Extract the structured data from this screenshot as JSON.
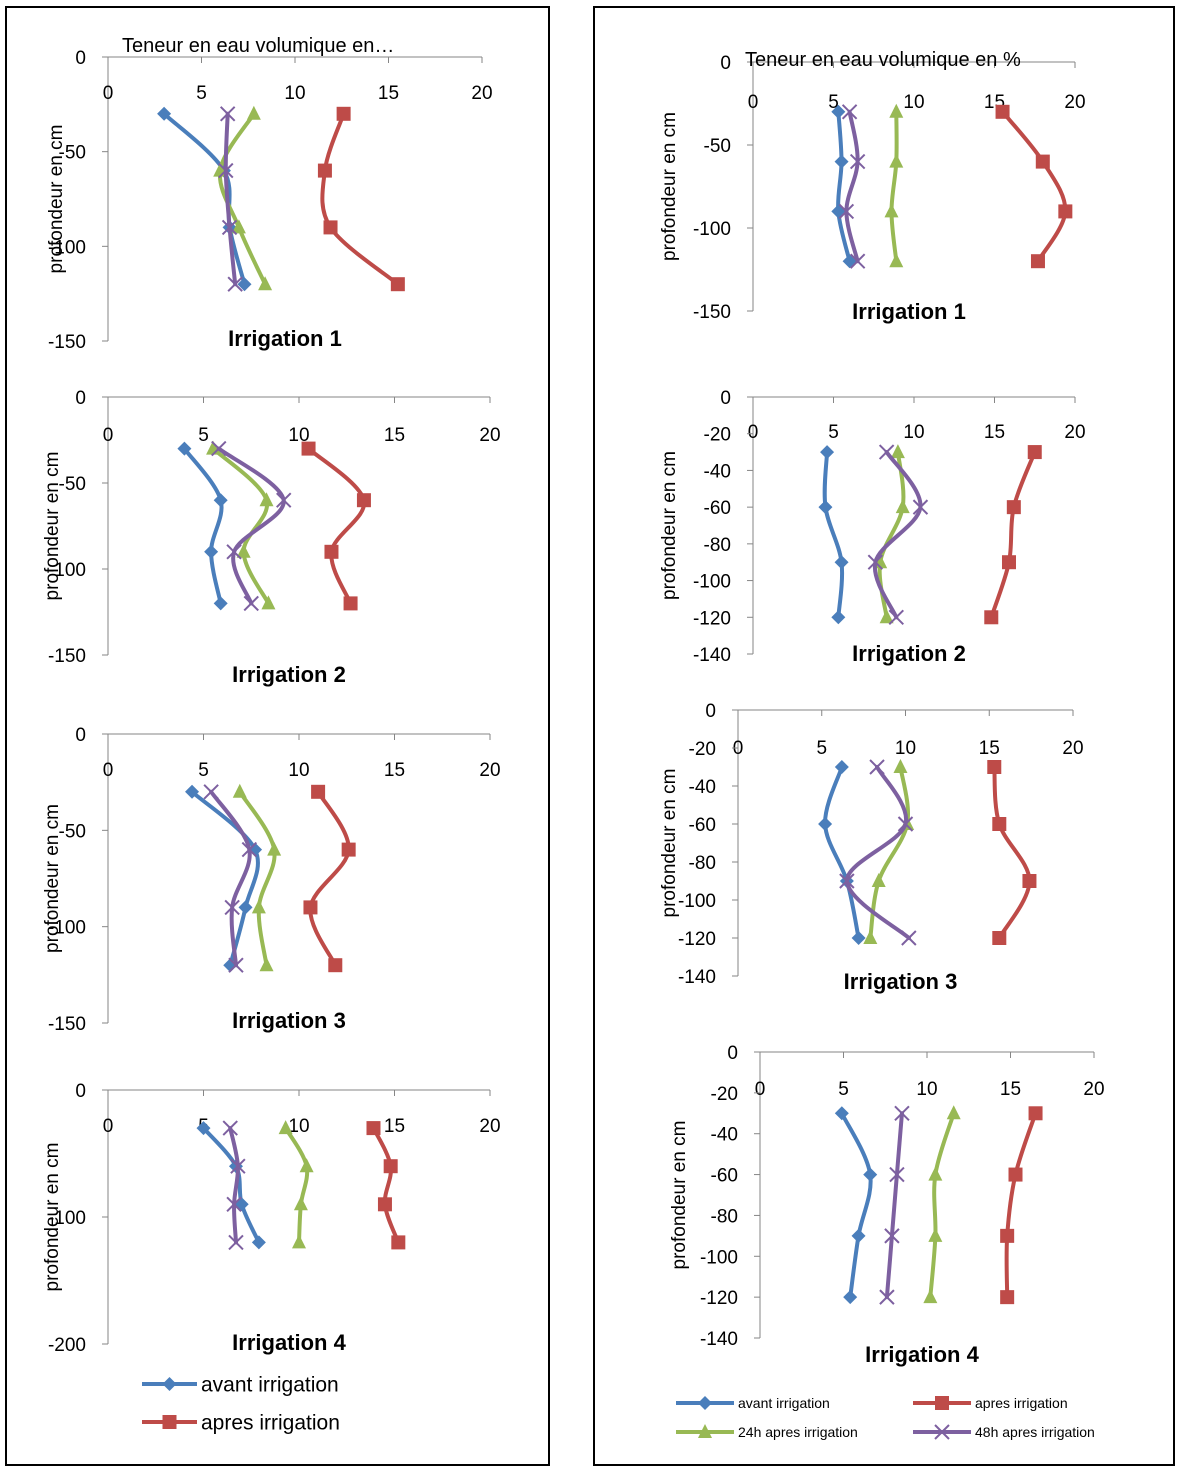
{
  "colors": {
    "avant": "#4A7EBB",
    "apres": "#BE4B48",
    "h24": "#98B954",
    "h48": "#7D60A0"
  },
  "legend_left": [
    {
      "label": "avant irrigation",
      "series": "avant",
      "marker": "diamond"
    },
    {
      "label": "apres irrigation",
      "series": "apres",
      "marker": "square"
    }
  ],
  "legend_right": [
    {
      "label": "avant irrigation",
      "series": "avant",
      "marker": "diamond"
    },
    {
      "label": "apres irrigation",
      "series": "apres",
      "marker": "square"
    },
    {
      "label": "24h apres irrigation",
      "series": "h24",
      "marker": "triangle"
    },
    {
      "label": "48h apres irrigation",
      "series": "h48",
      "marker": "x"
    }
  ],
  "chart_data": [
    {
      "id": "L1",
      "type": "line",
      "title": "Irrigation 1",
      "top_label": "Teneur en eau volumique en…",
      "ylabel": "profondeur en cm",
      "xlim": [
        0,
        20
      ],
      "xticks": [
        0,
        5,
        10,
        15,
        20
      ],
      "ylim": [
        -150,
        0
      ],
      "yticks": [
        0,
        -50,
        -100,
        -150
      ],
      "y": [
        -30,
        -60,
        -90,
        -120
      ],
      "series": [
        {
          "key": "avant",
          "x": [
            3.0,
            6.2,
            6.5,
            7.3
          ]
        },
        {
          "key": "apres",
          "x": [
            12.6,
            11.6,
            11.9,
            15.5
          ]
        },
        {
          "key": "h24",
          "x": [
            7.8,
            6.0,
            7.0,
            8.4
          ]
        },
        {
          "key": "h48",
          "x": [
            6.4,
            6.3,
            6.5,
            6.8
          ]
        }
      ]
    },
    {
      "id": "L2",
      "type": "line",
      "title": "Irrigation 2",
      "ylabel": "profondeur en cm",
      "xlim": [
        0,
        20
      ],
      "xticks": [
        0,
        5,
        10,
        15,
        20
      ],
      "ylim": [
        -150,
        0
      ],
      "yticks": [
        0,
        -50,
        -100,
        -150
      ],
      "y": [
        -30,
        -60,
        -90,
        -120
      ],
      "series": [
        {
          "key": "avant",
          "x": [
            4.0,
            5.9,
            5.4,
            5.9
          ]
        },
        {
          "key": "apres",
          "x": [
            10.5,
            13.4,
            11.7,
            12.7
          ]
        },
        {
          "key": "h24",
          "x": [
            5.5,
            8.3,
            7.1,
            8.4
          ]
        },
        {
          "key": "h48",
          "x": [
            5.8,
            9.2,
            6.6,
            7.5
          ]
        }
      ]
    },
    {
      "id": "L3",
      "type": "line",
      "title": "Irrigation 3",
      "ylabel": "profondeur en cm",
      "xlim": [
        0,
        20
      ],
      "xticks": [
        0,
        5,
        10,
        15,
        20
      ],
      "ylim": [
        -150,
        0
      ],
      "yticks": [
        0,
        -50,
        -100,
        -150
      ],
      "y": [
        -30,
        -60,
        -90,
        -120
      ],
      "series": [
        {
          "key": "avant",
          "x": [
            4.4,
            7.7,
            7.2,
            6.4
          ]
        },
        {
          "key": "apres",
          "x": [
            11.0,
            12.6,
            10.6,
            11.9
          ]
        },
        {
          "key": "h24",
          "x": [
            6.9,
            8.7,
            7.9,
            8.3
          ]
        },
        {
          "key": "h48",
          "x": [
            5.4,
            7.4,
            6.5,
            6.7
          ]
        }
      ]
    },
    {
      "id": "L4",
      "type": "line",
      "title": "Irrigation 4",
      "ylabel": "profondeur en cm",
      "xlim": [
        0,
        20
      ],
      "xticks": [
        0,
        5,
        10,
        15,
        20
      ],
      "ylim": [
        -200,
        0
      ],
      "yticks": [
        0,
        -100,
        -200
      ],
      "y": [
        -30,
        -60,
        -90,
        -120
      ],
      "series": [
        {
          "key": "avant",
          "x": [
            5.0,
            6.7,
            7.0,
            7.9
          ]
        },
        {
          "key": "apres",
          "x": [
            13.9,
            14.8,
            14.5,
            15.2
          ]
        },
        {
          "key": "h24",
          "x": [
            9.3,
            10.4,
            10.1,
            10.0
          ]
        },
        {
          "key": "h48",
          "x": [
            6.4,
            6.8,
            6.6,
            6.7
          ]
        }
      ]
    },
    {
      "id": "R1",
      "type": "line",
      "title": "Irrigation 1",
      "top_label": "Teneur en eau volumique en %",
      "ylabel": "profondeur en cm",
      "xlim": [
        0,
        20
      ],
      "xticks": [
        0,
        5,
        10,
        15,
        20
      ],
      "ylim": [
        -150,
        0
      ],
      "yticks": [
        0,
        -50,
        -100,
        -150
      ],
      "y": [
        -30,
        -60,
        -90,
        -120
      ],
      "series": [
        {
          "key": "avant",
          "x": [
            5.3,
            5.5,
            5.3,
            6.0
          ]
        },
        {
          "key": "apres",
          "x": [
            15.5,
            18.0,
            19.4,
            17.7
          ]
        },
        {
          "key": "h24",
          "x": [
            8.9,
            8.9,
            8.6,
            8.9
          ]
        },
        {
          "key": "h48",
          "x": [
            6.0,
            6.5,
            5.8,
            6.5
          ]
        }
      ]
    },
    {
      "id": "R2",
      "type": "line",
      "title": "Irrigation 2",
      "ylabel": "profondeur en cm",
      "xlim": [
        0,
        20
      ],
      "xticks": [
        0,
        5,
        10,
        15,
        20
      ],
      "ylim": [
        -140,
        0
      ],
      "yticks": [
        0,
        -20,
        -40,
        -60,
        -80,
        -100,
        -120,
        -140
      ],
      "y": [
        -30,
        -60,
        -90,
        -120
      ],
      "series": [
        {
          "key": "avant",
          "x": [
            4.6,
            4.5,
            5.5,
            5.3
          ]
        },
        {
          "key": "apres",
          "x": [
            17.5,
            16.2,
            15.9,
            14.8
          ]
        },
        {
          "key": "h24",
          "x": [
            9.0,
            9.3,
            7.9,
            8.3
          ]
        },
        {
          "key": "h48",
          "x": [
            8.3,
            10.4,
            7.6,
            8.9
          ]
        }
      ]
    },
    {
      "id": "R3",
      "type": "line",
      "title": "Irrigation 3",
      "ylabel": "profondeur en cm",
      "xlim": [
        0,
        20
      ],
      "xticks": [
        0,
        5,
        10,
        15,
        20
      ],
      "ylim": [
        -140,
        0
      ],
      "yticks": [
        0,
        -20,
        -40,
        -60,
        -80,
        -100,
        -120,
        -140
      ],
      "y": [
        -30,
        -60,
        -90,
        -120
      ],
      "series": [
        {
          "key": "avant",
          "x": [
            6.2,
            5.2,
            6.5,
            7.2
          ]
        },
        {
          "key": "apres",
          "x": [
            15.3,
            15.6,
            17.4,
            15.6
          ]
        },
        {
          "key": "h24",
          "x": [
            9.7,
            10.1,
            8.4,
            7.9
          ]
        },
        {
          "key": "h48",
          "x": [
            8.3,
            10.0,
            6.5,
            10.2
          ]
        }
      ]
    },
    {
      "id": "R4",
      "type": "line",
      "title": "Irrigation 4",
      "ylabel": "profondeur en cm",
      "xlim": [
        0,
        20
      ],
      "xticks": [
        0,
        5,
        10,
        15,
        20
      ],
      "ylim": [
        -140,
        0
      ],
      "yticks": [
        0,
        -20,
        -40,
        -60,
        -80,
        -100,
        -120,
        -140
      ],
      "y": [
        -30,
        -60,
        -90,
        -120
      ],
      "series": [
        {
          "key": "avant",
          "x": [
            4.9,
            6.6,
            5.9,
            5.4
          ]
        },
        {
          "key": "apres",
          "x": [
            16.5,
            15.3,
            14.8,
            14.8
          ]
        },
        {
          "key": "h24",
          "x": [
            11.6,
            10.5,
            10.5,
            10.2
          ]
        },
        {
          "key": "h48",
          "x": [
            8.5,
            8.2,
            7.9,
            7.6
          ]
        }
      ]
    }
  ]
}
